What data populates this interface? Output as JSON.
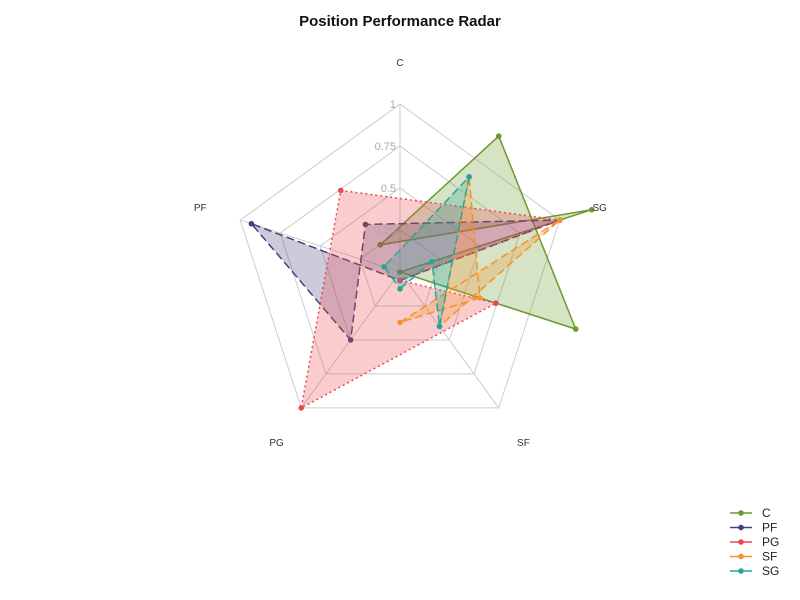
{
  "chart_data": {
    "type": "radar",
    "title": "Position Performance Radar",
    "axes": [
      "C",
      "SG",
      "SF",
      "PG",
      "PF"
    ],
    "ticks": [
      "0",
      "0.25",
      "0.5",
      "0.75",
      "1"
    ],
    "rlim": [
      0,
      1
    ],
    "legend_position": "bottom-right",
    "grid": true,
    "series": [
      {
        "name": "C",
        "color": "#6a9a2e",
        "dash": "solid",
        "values": [
          0.0,
          1.2,
          -0.2,
          -1.0,
          -1.1
        ]
      },
      {
        "name": "PF",
        "color": "#4a3f7a",
        "dash": "dashed",
        "values": [
          -0.05,
          1.0,
          -0.35,
          0.5,
          0.93
        ]
      },
      {
        "name": "PG",
        "color": "#e84a4f",
        "dash": "dotted",
        "values": [
          -0.05,
          1.0,
          -0.6,
          1.0,
          -0.6
        ]
      },
      {
        "name": "SF",
        "color": "#f5922a",
        "dash": "dashed",
        "values": [
          -0.3,
          1.0,
          0.4,
          -0.7,
          -0.5
        ]
      },
      {
        "name": "SG",
        "color": "#26a69a",
        "dash": "dashed",
        "values": [
          -0.1,
          0.2,
          0.4,
          -0.7,
          0.1
        ]
      }
    ]
  }
}
